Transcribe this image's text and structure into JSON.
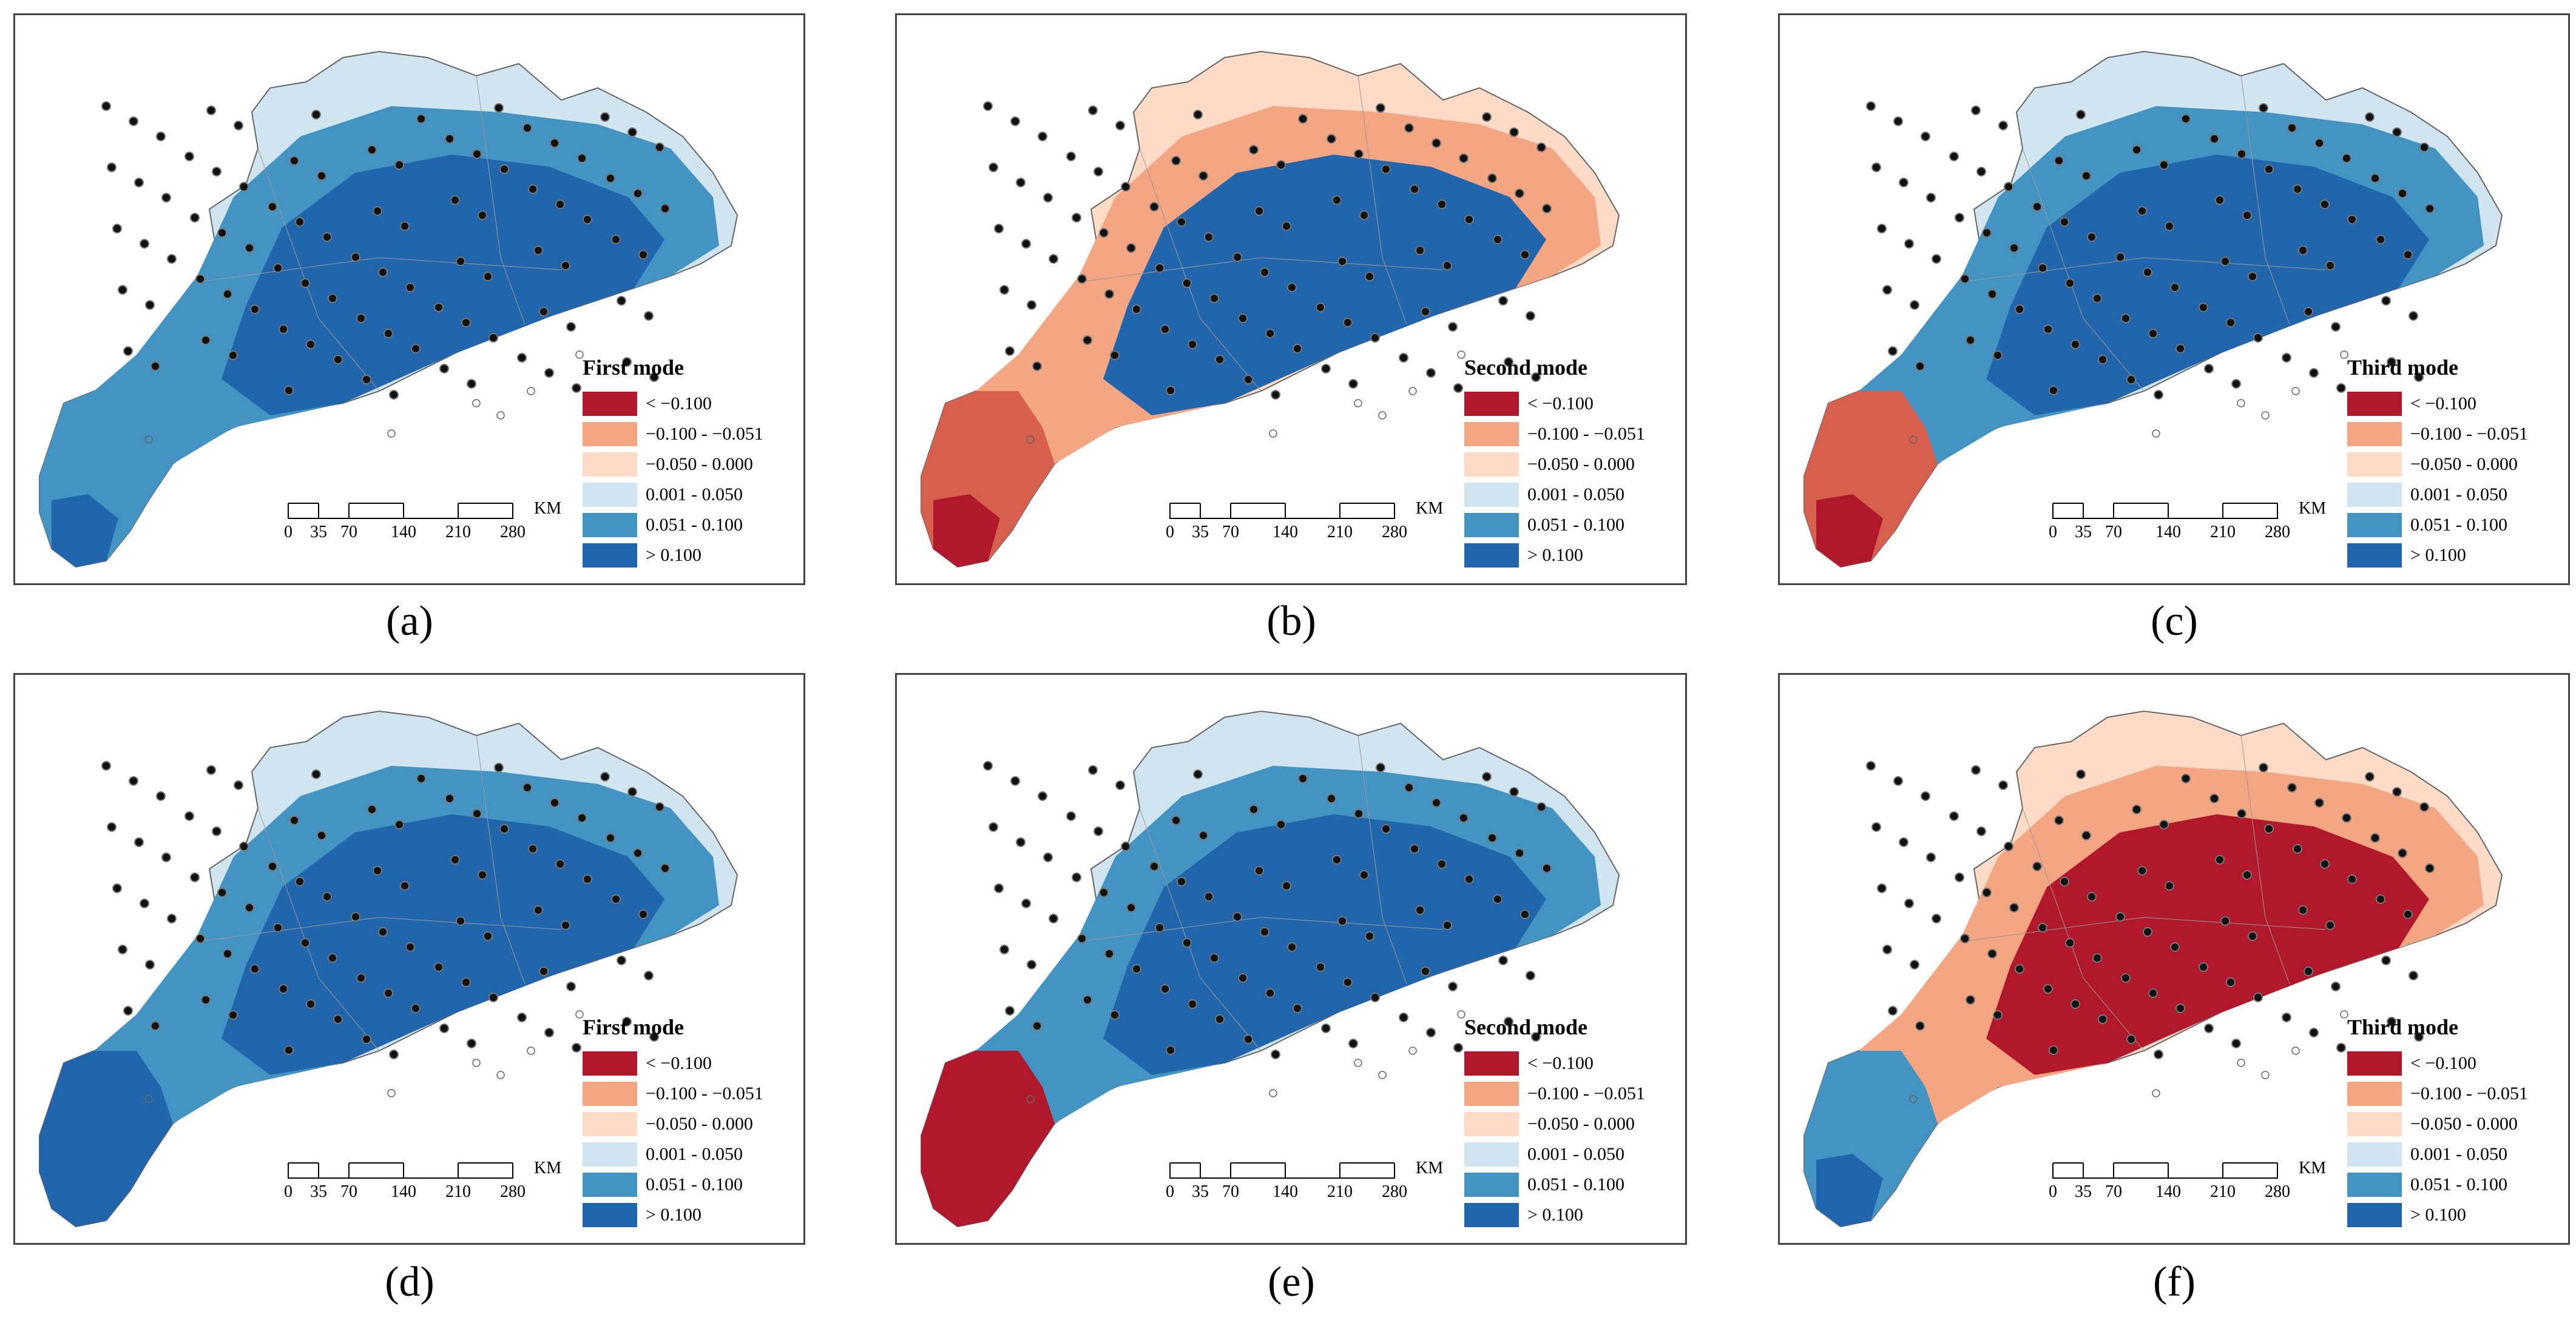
{
  "figure": {
    "panels": [
      {
        "label": "(a)",
        "mode": "First mode",
        "colors": {
          "north": "#d1e5f0",
          "middle": "#4393c3",
          "core": "#2166ac",
          "southwest": "#4393c3",
          "tip": "#2166ac"
        }
      },
      {
        "label": "(b)",
        "mode": "Second mode",
        "colors": {
          "north": "#fddbc7",
          "middle": "#f4a582",
          "core": "#2166ac",
          "southwest": "#d6604d",
          "tip": "#b2182b"
        }
      },
      {
        "label": "(c)",
        "mode": "Third mode",
        "colors": {
          "north": "#d1e5f0",
          "middle": "#4393c3",
          "core": "#2166ac",
          "southwest": "#d6604d",
          "tip": "#b2182b"
        }
      },
      {
        "label": "(d)",
        "mode": "First mode",
        "colors": {
          "north": "#d1e5f0",
          "middle": "#4393c3",
          "core": "#2166ac",
          "southwest": "#2166ac",
          "tip": "#2166ac"
        }
      },
      {
        "label": "(e)",
        "mode": "Second mode",
        "colors": {
          "north": "#d1e5f0",
          "middle": "#4393c3",
          "core": "#2166ac",
          "southwest": "#b2182b",
          "tip": "#b2182b"
        }
      },
      {
        "label": "(f)",
        "mode": "Third mode",
        "colors": {
          "north": "#fddbc7",
          "middle": "#f4a582",
          "core": "#b2182b",
          "southwest": "#4393c3",
          "tip": "#2166ac"
        }
      }
    ],
    "legend": [
      {
        "label": "< −0.100",
        "color": "#b2182b"
      },
      {
        "label": "−0.100 - −0.051",
        "color": "#f4a582"
      },
      {
        "label": "−0.050 - 0.000",
        "color": "#fddbc7"
      },
      {
        "label": "0.001 - 0.050",
        "color": "#d1e5f0"
      },
      {
        "label": "0.051 - 0.100",
        "color": "#4393c3"
      },
      {
        "label": "> 0.100",
        "color": "#2166ac"
      }
    ],
    "scale": {
      "ticks": [
        "0",
        "35",
        "70",
        "140",
        "210",
        "280"
      ],
      "unit": "KM"
    }
  }
}
